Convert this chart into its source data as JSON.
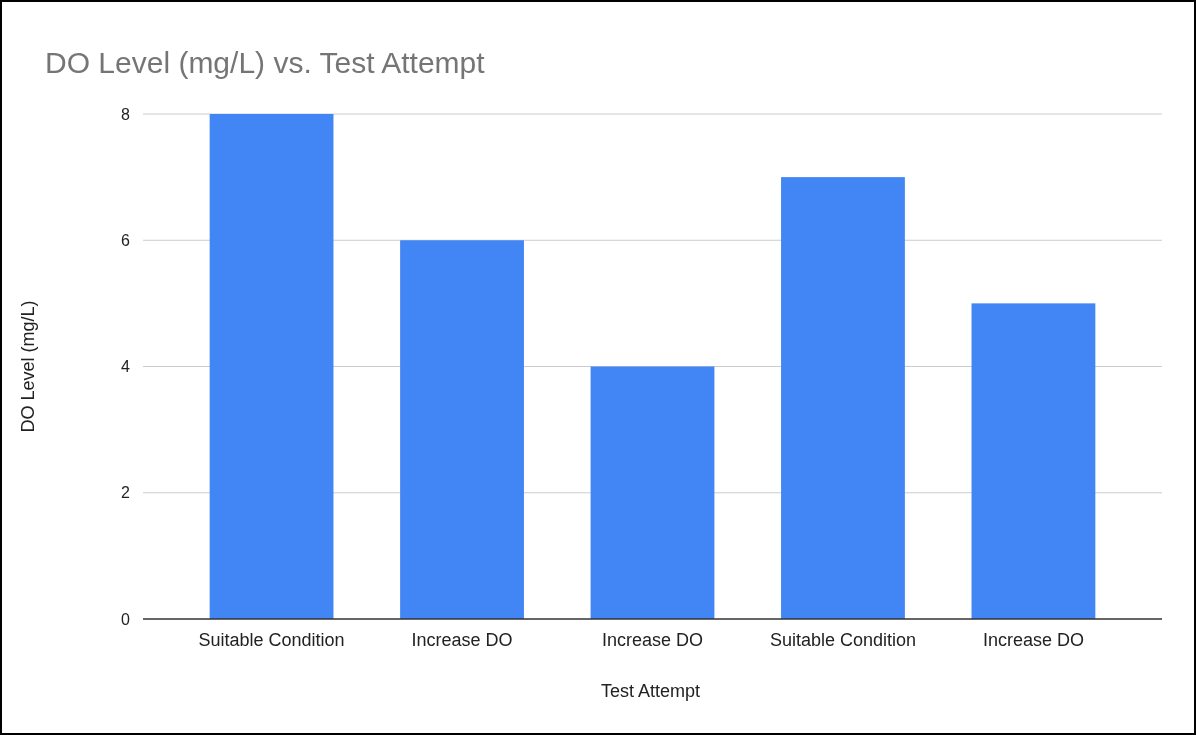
{
  "chart_data": {
    "type": "bar",
    "title": "DO Level (mg/L) vs. Test Attempt",
    "xlabel": "Test Attempt",
    "ylabel": "DO Level (mg/L)",
    "categories": [
      "Suitable Condition",
      "Increase DO",
      "Increase DO",
      "Suitable Condition",
      "Increase DO"
    ],
    "values": [
      8,
      6,
      4,
      7,
      5
    ],
    "color": "#4285f4",
    "ylim": [
      0,
      8
    ],
    "yticks": [
      0,
      2,
      4,
      6,
      8
    ],
    "grid": "y"
  }
}
